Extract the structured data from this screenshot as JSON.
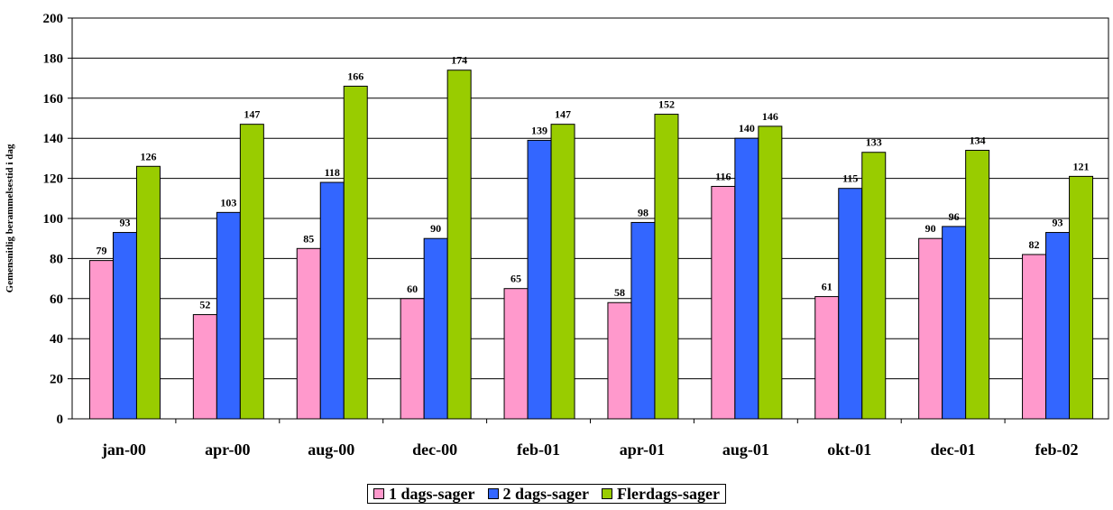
{
  "chart_data": {
    "type": "bar",
    "title": "",
    "xlabel": "",
    "ylabel": "Gemensnitlig berammelsestid i dag",
    "ylim": [
      0,
      200
    ],
    "yticks": [
      0,
      20,
      40,
      60,
      80,
      100,
      120,
      140,
      160,
      180,
      200
    ],
    "grid": true,
    "legend_position": "bottom",
    "categories": [
      "jan-00",
      "apr-00",
      "aug-00",
      "dec-00",
      "feb-01",
      "apr-01",
      "aug-01",
      "okt-01",
      "dec-01",
      "feb-02"
    ],
    "series": [
      {
        "name": "1 dags-sager",
        "color": "#FF99CC",
        "values": [
          79,
          52,
          85,
          60,
          65,
          58,
          116,
          61,
          90,
          82
        ]
      },
      {
        "name": "2 dags-sager",
        "color": "#3366FF",
        "values": [
          93,
          103,
          118,
          90,
          139,
          98,
          140,
          115,
          96,
          93
        ]
      },
      {
        "name": "Flerdags-sager",
        "color": "#99CC00",
        "values": [
          126,
          147,
          166,
          174,
          147,
          152,
          146,
          133,
          134,
          121
        ]
      }
    ]
  }
}
